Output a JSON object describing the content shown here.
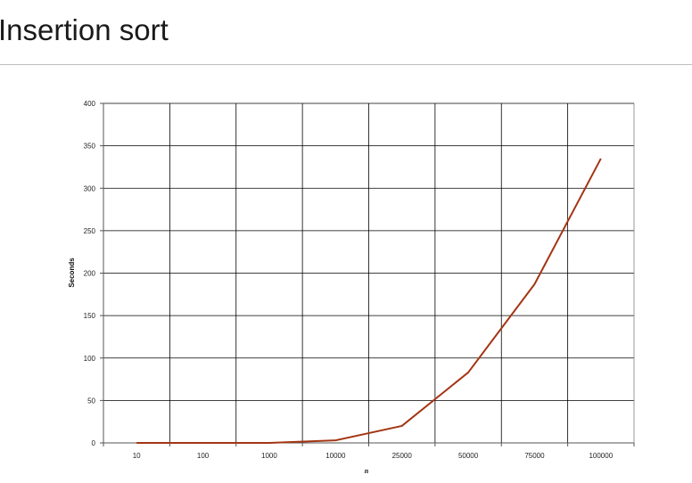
{
  "title": "Insertion sort",
  "chart_data": {
    "type": "line",
    "title": "",
    "xlabel": "n",
    "ylabel": "Seconds",
    "categories": [
      "10",
      "100",
      "1000",
      "10000",
      "25000",
      "50000",
      "75000",
      "100000"
    ],
    "series": [
      {
        "values": [
          0,
          0,
          0,
          3,
          20,
          83,
          187,
          335
        ],
        "color": "#a33514"
      }
    ],
    "ylim": [
      0,
      400
    ],
    "yticks": [
      0,
      50,
      100,
      150,
      200,
      250,
      300,
      350,
      400
    ],
    "grid": true,
    "colors": {
      "gridline": "#000000",
      "plot_border": "#808080",
      "series": "#a33514"
    }
  }
}
